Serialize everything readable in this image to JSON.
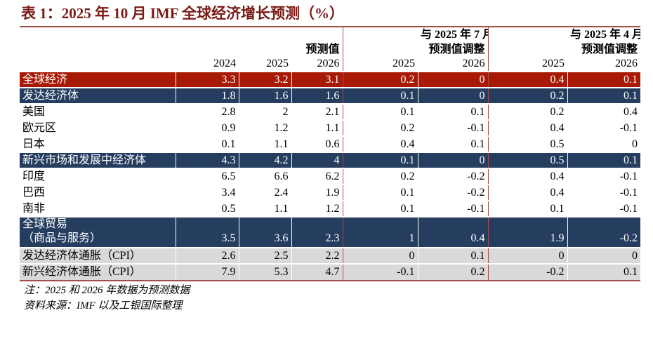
{
  "title": "表 1：2025 年 10 月 IMF 全球经济增长预测（%）",
  "header": {
    "group1": "预测值",
    "group2_line1": "与 2025 年 7 月",
    "group2_line2": "预测值调整",
    "group3_line1": "与 2025 年 4 月",
    "group3_line2": "预测值调整",
    "years": [
      "2024",
      "2025",
      "2026",
      "2025",
      "2026",
      "2025",
      "2026"
    ]
  },
  "colors": {
    "highlight_red": "#a81a06",
    "navy": "#253d5f",
    "gray": "#d9d9d9",
    "title": "#7a1a14"
  },
  "rows": [
    {
      "label": "全球经济",
      "style": "red",
      "values": [
        "3.3",
        "3.2",
        "3.1",
        "0.2",
        "0",
        "0.4",
        "0.1"
      ]
    },
    {
      "label": "发达经济体",
      "style": "navy",
      "values": [
        "1.8",
        "1.6",
        "1.6",
        "0.1",
        "0",
        "0.2",
        "0.1"
      ]
    },
    {
      "label": "美国",
      "style": "white",
      "values": [
        "2.8",
        "2",
        "2.1",
        "0.1",
        "0.1",
        "0.2",
        "0.4"
      ]
    },
    {
      "label": "欧元区",
      "style": "white",
      "values": [
        "0.9",
        "1.2",
        "1.1",
        "0.2",
        "-0.1",
        "0.4",
        "-0.1"
      ]
    },
    {
      "label": "日本",
      "style": "white",
      "values": [
        "0.1",
        "1.1",
        "0.6",
        "0.4",
        "0.1",
        "0.5",
        "0"
      ]
    },
    {
      "label": "新兴市场和发展中经济体",
      "style": "navy",
      "values": [
        "4.3",
        "4.2",
        "4",
        "0.1",
        "0",
        "0.5",
        "0.1"
      ]
    },
    {
      "label": "印度",
      "style": "white",
      "values": [
        "6.5",
        "6.6",
        "6.2",
        "0.2",
        "-0.2",
        "0.4",
        "-0.1"
      ]
    },
    {
      "label": "巴西",
      "style": "white",
      "values": [
        "3.4",
        "2.4",
        "1.9",
        "0.1",
        "-0.2",
        "0.4",
        "-0.1"
      ]
    },
    {
      "label": "南非",
      "style": "white",
      "values": [
        "0.5",
        "1.1",
        "1.2",
        "0.1",
        "-0.1",
        "0.1",
        "-0.1"
      ]
    },
    {
      "label": "全球贸易",
      "label2": "（商品与服务）",
      "style": "navy trade",
      "values": [
        "3.5",
        "3.6",
        "2.3",
        "1",
        "0.4",
        "1.9",
        "-0.2"
      ]
    },
    {
      "label": "发达经济体通胀（CPI）",
      "style": "gray",
      "values": [
        "2.6",
        "2.5",
        "2.2",
        "0",
        "0.1",
        "0",
        "0"
      ]
    },
    {
      "label": "新兴经济体通胀（CPI）",
      "style": "gray",
      "values": [
        "7.9",
        "5.3",
        "4.7",
        "-0.1",
        "0.2",
        "-0.2",
        "0.1"
      ]
    }
  ],
  "note": "注：2025 和 2026 年数据为预测数据",
  "source": "资料来源：IMF 以及工银国际整理"
}
